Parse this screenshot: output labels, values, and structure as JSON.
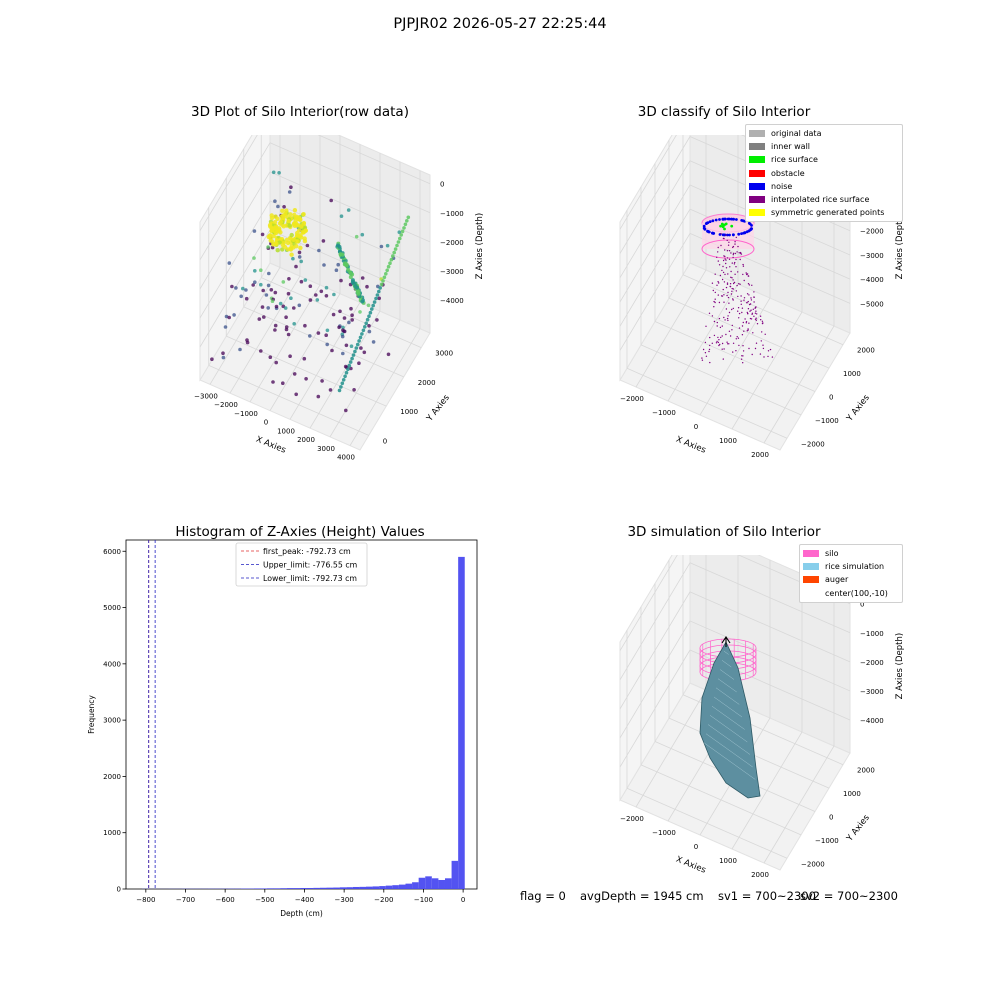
{
  "figure": {
    "suptitle": "PJPJR02 2026-05-27 22:25:44"
  },
  "status_line": {
    "flag": "flag = 0",
    "avg_depth": "avgDepth = 1945 cm",
    "sv1": "sv1 = 700~2300",
    "sv2": "sv2 = 700~2300"
  },
  "colors": {
    "pane": "#f2f2f2",
    "grid": "#d8d8d8",
    "histogram_bar": "#4a4af0",
    "first_peak_line": "#e03030",
    "limit_line": "#2020c0",
    "silo": "#ff66cc",
    "rice_simulation": "#87ceeb",
    "auger": "#ff4500",
    "surface_fill": "#5d8fa0",
    "surface_edge": "#2e5a66"
  },
  "chart_data": [
    {
      "id": "raw",
      "type": "scatter",
      "projection": "3d",
      "title": "3D Plot of Silo Interior(row data)",
      "xlabel": "X Axies",
      "ylabel": "Y Axies",
      "zlabel": "Z Axies (Depth)",
      "xticks": [
        "−3000",
        "−2000",
        "−1000",
        "0",
        "1000",
        "2000",
        "3000",
        "4000"
      ],
      "yticks": [
        "0",
        "1000",
        "2000",
        "3000"
      ],
      "zticks": [
        "0",
        "−1000",
        "−2000",
        "−3000",
        "−4000"
      ],
      "xlim": [
        -3500,
        4500
      ],
      "ylim": [
        -500,
        3500
      ],
      "zlim": [
        -4600,
        0
      ],
      "colormap": "viridis",
      "grid": true
    },
    {
      "id": "classify",
      "type": "scatter",
      "projection": "3d",
      "title": "3D classify of Silo Interior",
      "xlabel": "X Axies",
      "ylabel": "Y Axies",
      "zlabel": "Z Axies (Depth)",
      "xticks": [
        "−2000",
        "−1000",
        "0",
        "1000",
        "2000"
      ],
      "yticks": [
        "−2000",
        "−1000",
        "0",
        "1000",
        "2000"
      ],
      "zticks": [
        "0",
        "−1000",
        "−2000",
        "−3000",
        "−4000",
        "−5000"
      ],
      "xlim": [
        -2600,
        2600
      ],
      "ylim": [
        -2600,
        2600
      ],
      "zlim": [
        -5400,
        0
      ],
      "legend_position": "upper-right",
      "legend": [
        {
          "label": "original data",
          "color": "#b0b0b0"
        },
        {
          "label": "inner wall",
          "color": "#808080"
        },
        {
          "label": "rice surface",
          "color": "#00ee00"
        },
        {
          "label": "obstacle",
          "color": "#ff0000"
        },
        {
          "label": "noise",
          "color": "#0000ee"
        },
        {
          "label": "interpolated rice surface",
          "color": "#800080"
        },
        {
          "label": "symmetric generated points",
          "color": "#ffff00"
        }
      ],
      "grid": true
    },
    {
      "id": "histogram",
      "type": "bar",
      "title": "Histogram of Z-Axies (Height) Values",
      "xlabel": "Depth (cm)",
      "ylabel": "Frequency",
      "xlim": [
        -850,
        35
      ],
      "ylim": [
        0,
        6200
      ],
      "xticks": [
        -800,
        -700,
        -600,
        -500,
        -400,
        -300,
        -200,
        -100,
        0
      ],
      "yticks": [
        0,
        1000,
        2000,
        3000,
        4000,
        5000,
        6000
      ],
      "bin_width": 16.6,
      "bin_left_edges": [
        -809.3,
        -792.7,
        -776.1,
        -759.5,
        -742.9,
        -726.3,
        -709.7,
        -693.1,
        -676.5,
        -659.9,
        -643.3,
        -626.7,
        -610.1,
        -593.5,
        -576.9,
        -560.3,
        -543.7,
        -527.1,
        -510.5,
        -493.9,
        -477.3,
        -460.7,
        -444.1,
        -427.5,
        -410.9,
        -394.3,
        -377.7,
        -361.1,
        -344.5,
        -327.9,
        -311.3,
        -294.7,
        -278.1,
        -261.5,
        -244.9,
        -228.3,
        -211.7,
        -195.1,
        -178.5,
        -161.9,
        -145.3,
        -128.7,
        -112.1,
        -95.5,
        -78.9,
        -62.3,
        -45.7,
        -29.1,
        -12.5
      ],
      "values": [
        3,
        2,
        2,
        2,
        3,
        3,
        4,
        4,
        4,
        4,
        5,
        5,
        5,
        6,
        6,
        8,
        8,
        10,
        10,
        12,
        12,
        14,
        16,
        16,
        18,
        18,
        20,
        22,
        24,
        26,
        30,
        32,
        36,
        38,
        42,
        46,
        52,
        60,
        68,
        78,
        95,
        120,
        200,
        225,
        190,
        160,
        190,
        500,
        5900
      ],
      "vlines": [
        {
          "label": "first_peak: -792.73 cm",
          "x": -792.73,
          "color": "#e03030",
          "style": "dashed"
        },
        {
          "label": "Upper_limit: -776.55 cm",
          "x": -776.55,
          "color": "#2020c0",
          "style": "dashed"
        },
        {
          "label": "Lower_limit: -792.73 cm",
          "x": -792.73,
          "color": "#2020c0",
          "style": "dashed"
        }
      ],
      "legend_position": "upper-center",
      "grid": false
    },
    {
      "id": "simulation",
      "type": "surface",
      "projection": "3d",
      "title": "3D simulation of Silo Interior",
      "xlabel": "X Axies",
      "ylabel": "Y Axies",
      "zlabel": "Z Axies (Depth)",
      "xticks": [
        "−2000",
        "−1000",
        "0",
        "1000",
        "2000"
      ],
      "yticks": [
        "−2000",
        "−1000",
        "0",
        "1000",
        "2000"
      ],
      "zticks": [
        "0",
        "−1000",
        "−2000",
        "−3000",
        "−4000"
      ],
      "xlim": [
        -2600,
        2600
      ],
      "ylim": [
        -2600,
        2600
      ],
      "zlim": [
        -4600,
        0
      ],
      "legend_position": "upper-right",
      "legend": [
        {
          "label": "silo",
          "color": "#ff66cc"
        },
        {
          "label": "rice simulation",
          "color": "#87ceeb"
        },
        {
          "label": "auger",
          "color": "#ff4500"
        },
        {
          "label": "center(100,-10)",
          "color": ""
        }
      ],
      "grid": true
    }
  ]
}
